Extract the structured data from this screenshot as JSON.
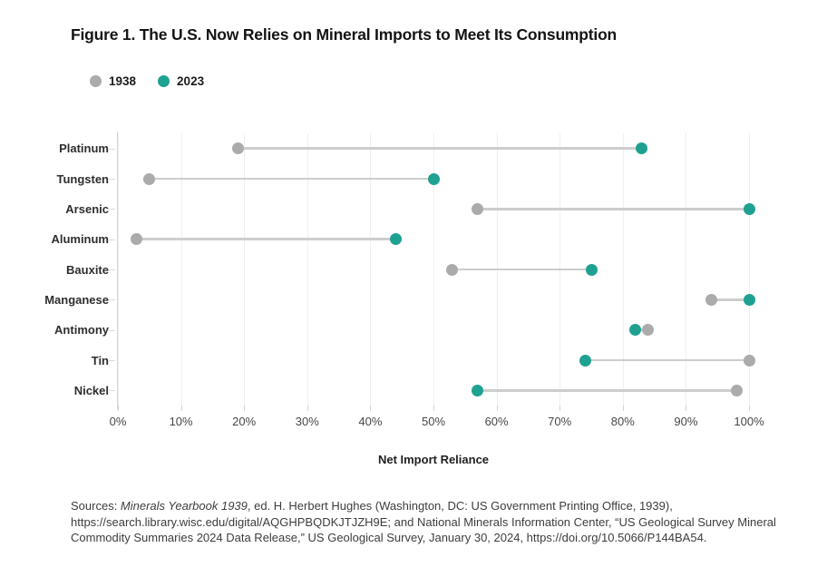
{
  "figure": {
    "title": "Figure 1. The U.S. Now Relies on Mineral Imports to Meet Its Consumption"
  },
  "legend": [
    {
      "label": "1938",
      "color": "#ababab"
    },
    {
      "label": "2023",
      "color": "#1fa191"
    }
  ],
  "chart_data": {
    "type": "dumbbell",
    "categories": [
      "Platinum",
      "Tungsten",
      "Arsenic",
      "Aluminum",
      "Bauxite",
      "Manganese",
      "Antimony",
      "Tin",
      "Nickel"
    ],
    "series": [
      {
        "name": "1938",
        "color": "#ababab",
        "values": [
          19,
          5,
          57,
          3,
          53,
          94,
          84,
          100,
          98
        ]
      },
      {
        "name": "2023",
        "color": "#1fa191",
        "values": [
          83,
          50,
          100,
          44,
          75,
          100,
          82,
          74,
          57
        ]
      }
    ],
    "x_ticks": [
      "0%",
      "10%",
      "20%",
      "30%",
      "40%",
      "50%",
      "60%",
      "70%",
      "80%",
      "90%",
      "100%"
    ],
    "xlim": [
      0,
      100
    ],
    "xlabel": "Net Import Reliance",
    "unit": "%",
    "grid": "vertical",
    "legend_position": "top-left",
    "connector_color": "#cdcdcd"
  },
  "sources": {
    "prefix": "Sources: ",
    "italic_title": "Minerals Yearbook 1939",
    "rest": ", ed. H. Herbert Hughes (Washington, DC: US Government Printing Office, 1939), https://search.library.wisc.edu/digital/AQGHPBQDKJTJZH9E; and National Minerals Information Center, “US Geological Survey Mineral Commodity Summaries 2024 Data Release,” US Geological Survey, January 30, 2024, https://doi.org/10.5066/P144BA54."
  }
}
